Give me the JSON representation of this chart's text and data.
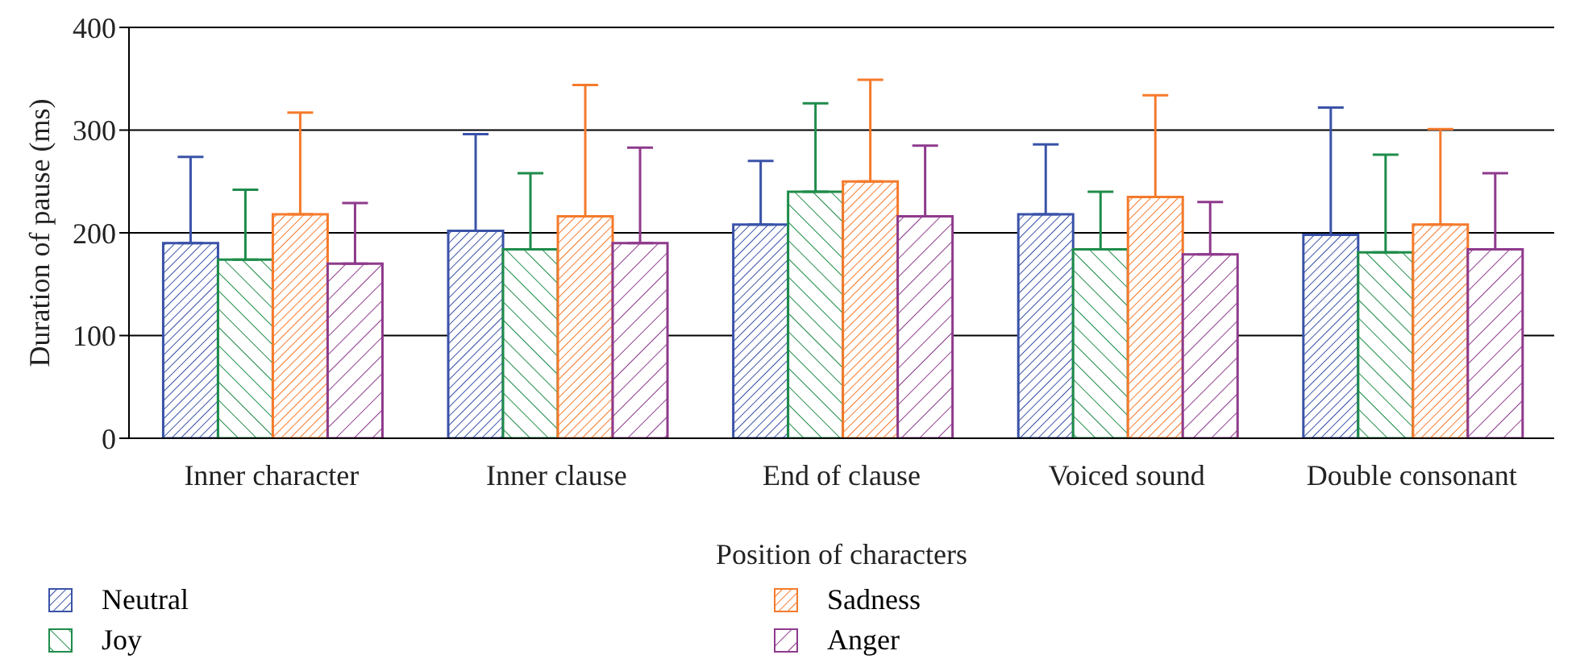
{
  "chart_data": {
    "type": "bar",
    "xlabel": "Position of characters",
    "ylabel": "Duration of pause (ms)",
    "categories": [
      "Inner character",
      "Inner clause",
      "End of clause",
      "Voiced sound",
      "Double consonant"
    ],
    "series": [
      {
        "name": "Neutral",
        "color": "#3a52a8",
        "values": [
          190,
          202,
          208,
          218,
          198
        ],
        "errors": [
          [
            190,
            274
          ],
          [
            202,
            296
          ],
          [
            208,
            270
          ],
          [
            218,
            286
          ],
          [
            198,
            322
          ]
        ]
      },
      {
        "name": "Joy",
        "color": "#1e8c4a",
        "values": [
          174,
          184,
          240,
          184,
          181
        ],
        "errors": [
          [
            174,
            242
          ],
          [
            184,
            258
          ],
          [
            240,
            326
          ],
          [
            184,
            240
          ],
          [
            181,
            276
          ]
        ]
      },
      {
        "name": "Sadness",
        "color": "#f57a2c",
        "values": [
          218,
          216,
          250,
          235,
          208
        ],
        "errors": [
          [
            218,
            317
          ],
          [
            216,
            344
          ],
          [
            250,
            349
          ],
          [
            235,
            334
          ],
          [
            208,
            301
          ]
        ]
      },
      {
        "name": "Anger",
        "color": "#8e3a8c",
        "values": [
          170,
          190,
          216,
          179,
          184
        ],
        "errors": [
          [
            170,
            229
          ],
          [
            190,
            283
          ],
          [
            216,
            285
          ],
          [
            179,
            230
          ],
          [
            184,
            258
          ]
        ]
      }
    ],
    "ylim": [
      0,
      400
    ],
    "yticks": [
      0,
      100,
      200,
      300,
      400
    ],
    "grid": "y",
    "legend": "bottom"
  }
}
